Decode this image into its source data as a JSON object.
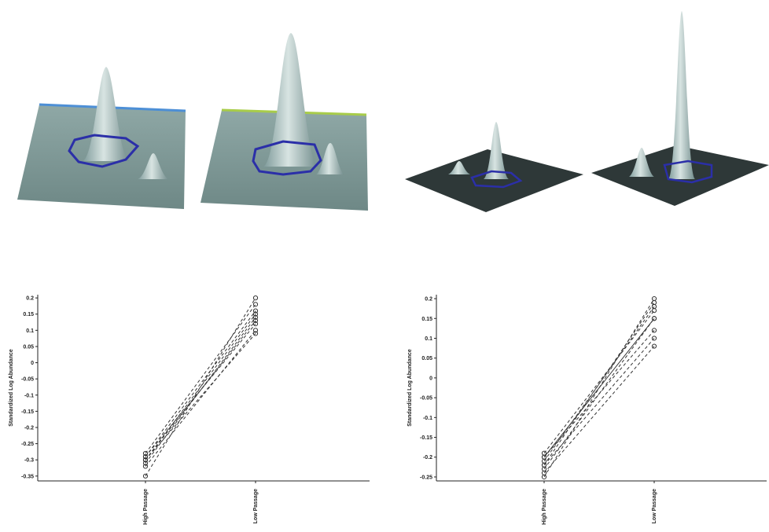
{
  "chart_data": [
    {
      "type": "line",
      "y_label": "Standardized Log Abundance",
      "categories": [
        "High Passage",
        "Low Passage"
      ],
      "ylim": [
        -0.365,
        0.21
      ],
      "yticks": [
        0.2,
        0.15,
        0.1,
        0.05,
        0,
        -0.05,
        -0.1,
        -0.15,
        -0.2,
        -0.25,
        -0.3,
        -0.35
      ],
      "color": "#333333",
      "series": [
        {
          "values": [
            -0.35,
            0.2
          ],
          "dash": true
        },
        {
          "values": [
            -0.28,
            0.18
          ],
          "dash": true
        },
        {
          "values": [
            -0.29,
            0.16
          ],
          "dash": true
        },
        {
          "values": [
            -0.3,
            0.15
          ],
          "dash": true
        },
        {
          "values": [
            -0.31,
            0.14
          ],
          "dash": true
        },
        {
          "values": [
            -0.3,
            0.13
          ],
          "dash": true
        },
        {
          "values": [
            -0.29,
            0.12
          ],
          "dash": true
        },
        {
          "values": [
            -0.32,
            0.1
          ],
          "dash": true
        },
        {
          "values": [
            -0.3,
            0.09
          ],
          "dash": true
        }
      ]
    },
    {
      "type": "line",
      "y_label": "Standardized Log Abundance",
      "categories": [
        "High Passage",
        "Low Passage"
      ],
      "ylim": [
        -0.26,
        0.21
      ],
      "yticks": [
        0.2,
        0.15,
        0.1,
        0.05,
        0,
        -0.05,
        -0.1,
        -0.15,
        -0.2,
        -0.25
      ],
      "color": "#333333",
      "series": [
        {
          "values": [
            -0.2,
            0.15
          ],
          "dash": false
        },
        {
          "values": [
            -0.25,
            0.2
          ],
          "dash": true
        },
        {
          "values": [
            -0.22,
            0.19
          ],
          "dash": true
        },
        {
          "values": [
            -0.21,
            0.18
          ],
          "dash": true
        },
        {
          "values": [
            -0.19,
            0.17
          ],
          "dash": true
        },
        {
          "values": [
            -0.23,
            0.15
          ],
          "dash": true
        },
        {
          "values": [
            -0.2,
            0.12
          ],
          "dash": true
        },
        {
          "values": [
            -0.22,
            0.1
          ],
          "dash": true
        },
        {
          "values": [
            -0.24,
            0.08
          ],
          "dash": true
        }
      ]
    }
  ]
}
